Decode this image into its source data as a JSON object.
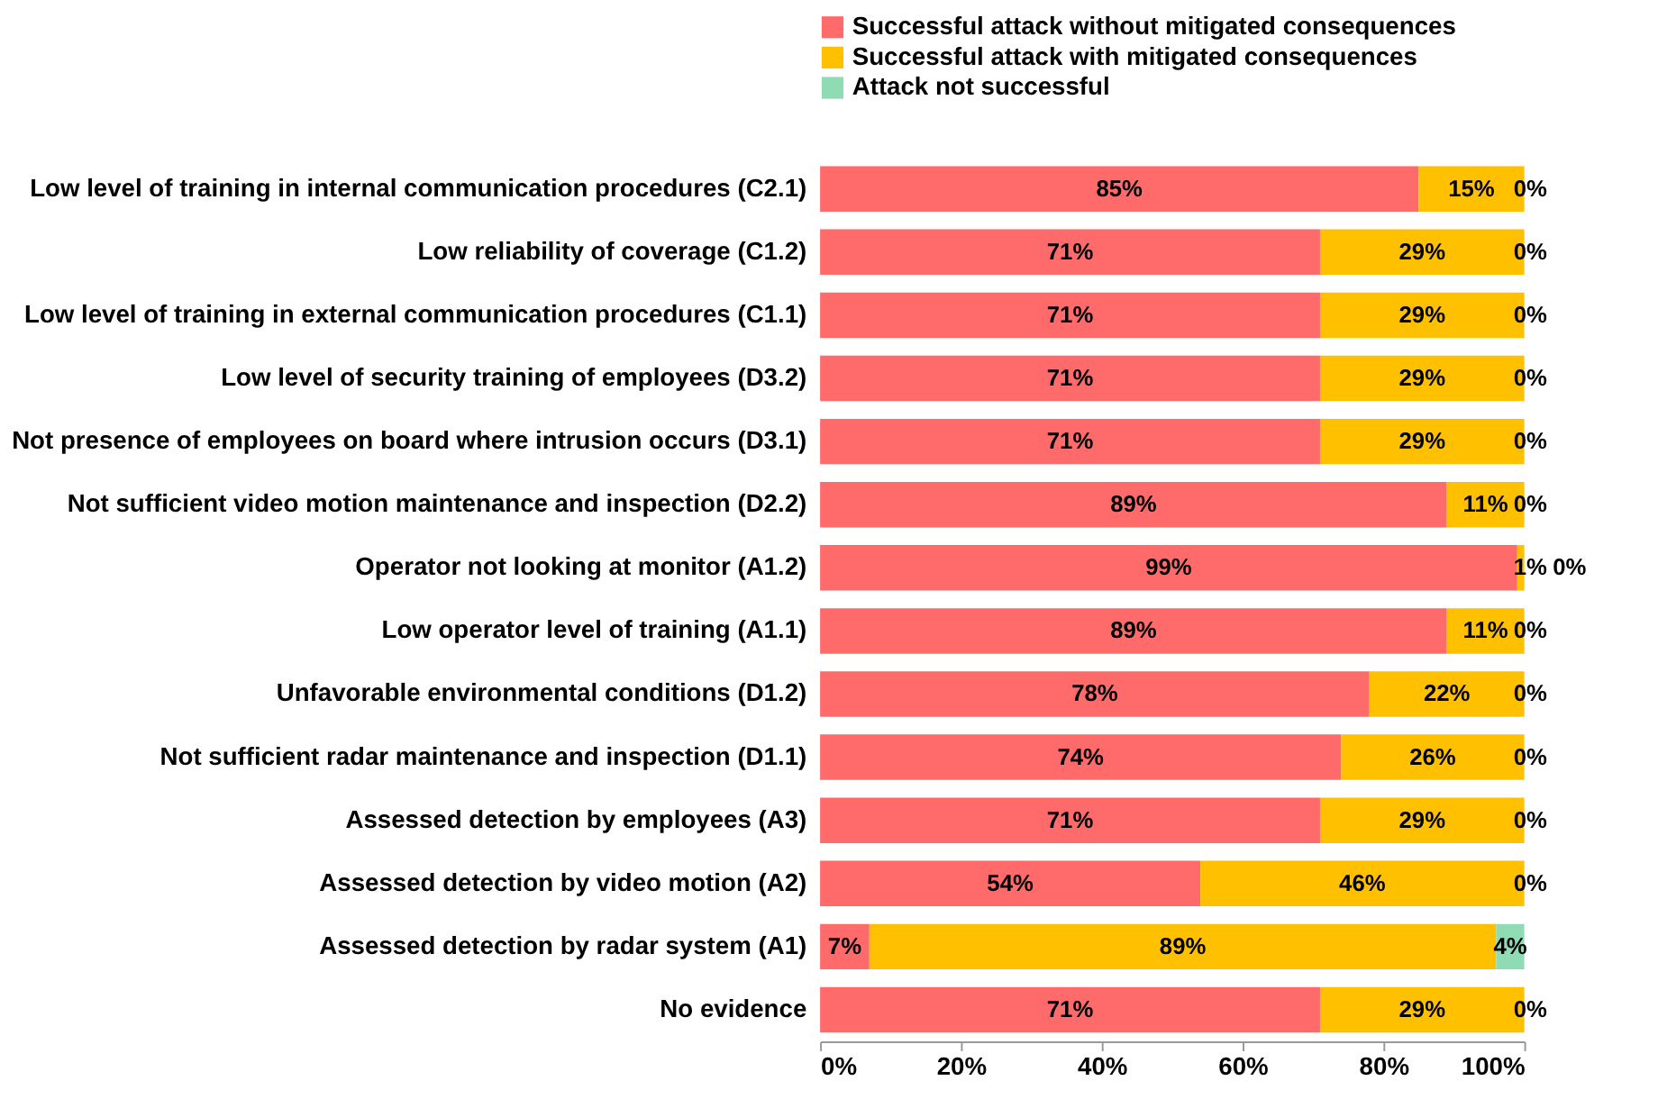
{
  "chart_data": {
    "type": "bar",
    "orientation": "horizontal",
    "stacked": true,
    "categories": [
      "Low level of training in internal communication procedures (C2.1)",
      "Low reliability of coverage (C1.2)",
      "Low level of training in external communication procedures (C1.1)",
      "Low level of security training of employees (D3.2)",
      "Not presence of employees on board where intrusion occurs (D3.1)",
      "Not sufficient video motion maintenance and inspection (D2.2)",
      "Operator not looking at monitor (A1.2)",
      "Low operator level of training (A1.1)",
      "Unfavorable environmental conditions (D1.2)",
      "Not sufficient radar maintenance and inspection (D1.1)",
      "Assessed detection by employees (A3)",
      "Assessed detection by video motion (A2)",
      "Assessed detection by radar system (A1)",
      "No evidence"
    ],
    "series": [
      {
        "name": "Successful attack without mitigated consequences",
        "color": "#ff6b6b",
        "values": [
          85,
          71,
          71,
          71,
          71,
          89,
          99,
          89,
          78,
          74,
          71,
          54,
          7,
          71
        ],
        "value_labels": [
          "85%",
          "71%",
          "71%",
          "71%",
          "71%",
          "89%",
          "99%",
          "89%",
          "78%",
          "74%",
          "71%",
          "54%",
          "7%",
          "71%"
        ]
      },
      {
        "name": "Successful attack with mitigated consequences",
        "color": "#ffc000",
        "values": [
          15,
          29,
          29,
          29,
          29,
          11,
          1,
          11,
          22,
          26,
          29,
          46,
          89,
          29
        ],
        "value_labels": [
          "15%",
          "29%",
          "29%",
          "29%",
          "29%",
          "11%",
          "1%",
          "11%",
          "22%",
          "26%",
          "29%",
          "46%",
          "89%",
          "29%"
        ]
      },
      {
        "name": "Attack not successful",
        "color": "#8fdcb4",
        "values": [
          0,
          0,
          0,
          0,
          0,
          0,
          0,
          0,
          0,
          0,
          0,
          0,
          4,
          0
        ],
        "value_labels": [
          "0%",
          "0%",
          "0%",
          "0%",
          "0%",
          "0%",
          "0%",
          "0%",
          "0%",
          "0%",
          "0%",
          "0%",
          "4%",
          "0%"
        ]
      }
    ],
    "xlim": [
      0,
      100
    ],
    "xticks": [
      {
        "value": 0,
        "label": "0%"
      },
      {
        "value": 20,
        "label": "20%"
      },
      {
        "value": 40,
        "label": "40%"
      },
      {
        "value": 60,
        "label": "60%"
      },
      {
        "value": 80,
        "label": "80%"
      },
      {
        "value": 100,
        "label": "100%"
      }
    ],
    "grid": false,
    "legend": "top right"
  }
}
